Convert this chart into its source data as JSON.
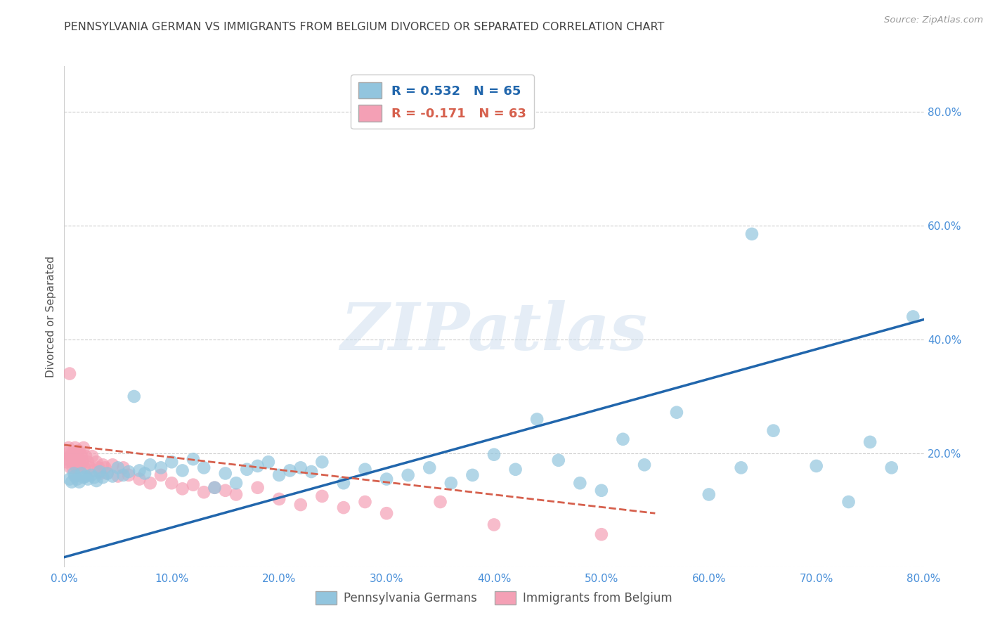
{
  "title": "PENNSYLVANIA GERMAN VS IMMIGRANTS FROM BELGIUM DIVORCED OR SEPARATED CORRELATION CHART",
  "source": "Source: ZipAtlas.com",
  "ylabel": "Divorced or Separated",
  "legend_labels": [
    "Pennsylvania Germans",
    "Immigrants from Belgium"
  ],
  "legend_r_blue": "R = 0.532",
  "legend_n_blue": "N = 65",
  "legend_r_pink": "R = -0.171",
  "legend_n_pink": "N = 63",
  "blue_color": "#92c5de",
  "pink_color": "#f4a0b5",
  "trend_blue": "#2166ac",
  "trend_pink": "#d6604d",
  "xlim": [
    0.0,
    0.8
  ],
  "ylim": [
    0.0,
    0.88
  ],
  "xticks": [
    0.0,
    0.1,
    0.2,
    0.3,
    0.4,
    0.5,
    0.6,
    0.7,
    0.8
  ],
  "yticks_right": [
    0.2,
    0.4,
    0.6,
    0.8
  ],
  "blue_x": [
    0.005,
    0.007,
    0.009,
    0.01,
    0.012,
    0.014,
    0.016,
    0.018,
    0.02,
    0.022,
    0.025,
    0.028,
    0.03,
    0.033,
    0.036,
    0.04,
    0.045,
    0.05,
    0.055,
    0.06,
    0.065,
    0.07,
    0.075,
    0.08,
    0.09,
    0.1,
    0.11,
    0.12,
    0.13,
    0.14,
    0.15,
    0.16,
    0.17,
    0.18,
    0.19,
    0.2,
    0.21,
    0.22,
    0.23,
    0.24,
    0.26,
    0.28,
    0.3,
    0.32,
    0.34,
    0.36,
    0.38,
    0.4,
    0.42,
    0.44,
    0.46,
    0.48,
    0.5,
    0.52,
    0.54,
    0.57,
    0.6,
    0.63,
    0.64,
    0.66,
    0.7,
    0.73,
    0.75,
    0.77,
    0.79
  ],
  "blue_y": [
    0.155,
    0.15,
    0.165,
    0.16,
    0.155,
    0.15,
    0.165,
    0.158,
    0.16,
    0.155,
    0.162,
    0.158,
    0.152,
    0.168,
    0.158,
    0.165,
    0.16,
    0.175,
    0.162,
    0.168,
    0.3,
    0.17,
    0.165,
    0.18,
    0.175,
    0.185,
    0.17,
    0.19,
    0.175,
    0.14,
    0.165,
    0.148,
    0.172,
    0.178,
    0.185,
    0.162,
    0.17,
    0.175,
    0.168,
    0.185,
    0.148,
    0.172,
    0.155,
    0.162,
    0.175,
    0.148,
    0.162,
    0.198,
    0.172,
    0.26,
    0.188,
    0.148,
    0.135,
    0.225,
    0.18,
    0.272,
    0.128,
    0.175,
    0.585,
    0.24,
    0.178,
    0.115,
    0.22,
    0.175,
    0.44
  ],
  "pink_x": [
    0.001,
    0.002,
    0.003,
    0.004,
    0.005,
    0.006,
    0.006,
    0.007,
    0.007,
    0.008,
    0.008,
    0.009,
    0.009,
    0.01,
    0.01,
    0.011,
    0.011,
    0.012,
    0.012,
    0.013,
    0.013,
    0.014,
    0.015,
    0.015,
    0.016,
    0.017,
    0.018,
    0.019,
    0.02,
    0.022,
    0.024,
    0.026,
    0.028,
    0.03,
    0.032,
    0.034,
    0.036,
    0.038,
    0.04,
    0.045,
    0.05,
    0.055,
    0.06,
    0.07,
    0.08,
    0.09,
    0.1,
    0.11,
    0.12,
    0.13,
    0.14,
    0.15,
    0.16,
    0.18,
    0.2,
    0.22,
    0.24,
    0.26,
    0.28,
    0.3,
    0.35,
    0.4,
    0.5
  ],
  "pink_y": [
    0.19,
    0.185,
    0.2,
    0.21,
    0.34,
    0.195,
    0.175,
    0.2,
    0.185,
    0.19,
    0.175,
    0.195,
    0.2,
    0.18,
    0.21,
    0.185,
    0.195,
    0.2,
    0.175,
    0.205,
    0.185,
    0.19,
    0.2,
    0.18,
    0.195,
    0.185,
    0.21,
    0.175,
    0.195,
    0.185,
    0.175,
    0.195,
    0.17,
    0.185,
    0.175,
    0.165,
    0.18,
    0.175,
    0.165,
    0.18,
    0.16,
    0.175,
    0.162,
    0.155,
    0.148,
    0.162,
    0.148,
    0.138,
    0.145,
    0.132,
    0.14,
    0.135,
    0.128,
    0.14,
    0.12,
    0.11,
    0.125,
    0.105,
    0.115,
    0.095,
    0.115,
    0.075,
    0.058
  ],
  "blue_line_x": [
    0.0,
    0.8
  ],
  "blue_line_y": [
    0.018,
    0.435
  ],
  "pink_line_x": [
    0.0,
    0.55
  ],
  "pink_line_y": [
    0.215,
    0.095
  ],
  "watermark": "ZIPatlas",
  "background_color": "#ffffff",
  "grid_color": "#cccccc",
  "title_color": "#444444",
  "axis_label_color": "#555555",
  "right_axis_color": "#4a90d9"
}
